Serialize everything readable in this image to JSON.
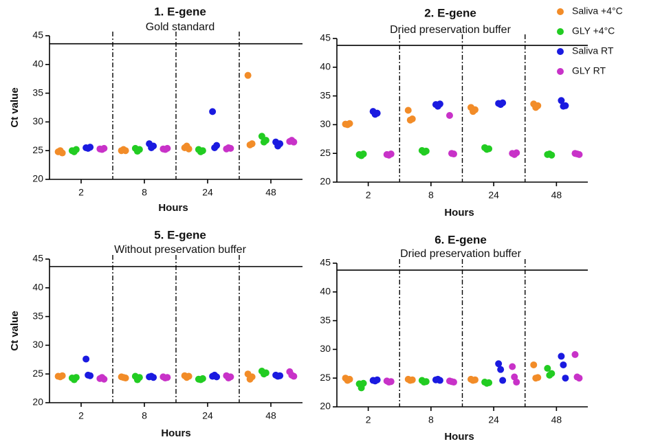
{
  "chart_data": [
    {
      "type": "strip",
      "title": "1. E-gene",
      "subtitle": "Gold standard",
      "x_label": "Hours",
      "y_label": "Ct value",
      "categories": [
        "2",
        "8",
        "24",
        "48"
      ],
      "ylim": [
        20,
        45
      ],
      "yticks": [
        20,
        25,
        30,
        35,
        40,
        45
      ],
      "hline": 43.6,
      "series": [
        {
          "name": "Saliva +4°C",
          "color": "#f28c28",
          "values": [
            [
              24.8,
              25,
              24.6
            ],
            [
              25,
              25.2,
              25
            ],
            [
              25.5,
              25.8,
              25.3
            ],
            [
              38.1,
              26,
              26.2
            ]
          ]
        },
        {
          "name": "GLY +4°C",
          "color": "#22cc22",
          "values": [
            [
              25,
              24.8,
              25.2
            ],
            [
              25.4,
              24.9,
              25.2
            ],
            [
              25.2,
              24.8,
              25
            ],
            [
              27.5,
              26.5,
              26.8
            ]
          ]
        },
        {
          "name": "Saliva RT",
          "color": "#1a1ae0",
          "values": [
            [
              25.5,
              25.4,
              25.6
            ],
            [
              26.2,
              25.5,
              25.8
            ],
            [
              31.8,
              25.5,
              25.9
            ],
            [
              26.5,
              25.8,
              26.2
            ]
          ]
        },
        {
          "name": "GLY RT",
          "color": "#c832c8",
          "values": [
            [
              25.3,
              25.2,
              25.4
            ],
            [
              25.3,
              25.2,
              25.4
            ],
            [
              25.3,
              25.5,
              25.4
            ],
            [
              26.6,
              26.8,
              26.5
            ]
          ]
        }
      ]
    },
    {
      "type": "strip",
      "title": "2. E-gene",
      "subtitle": "Dried preservation buffer",
      "x_label": "Hours",
      "categories": [
        "2",
        "8",
        "24",
        "48"
      ],
      "ylim": [
        20,
        45
      ],
      "yticks": [
        20,
        25,
        30,
        35,
        40,
        45
      ],
      "hline": 43.8,
      "series": [
        {
          "color": "#f28c28",
          "values": [
            [
              30.1,
              30,
              30.2
            ],
            [
              32.5,
              30.8,
              31
            ],
            [
              33,
              32.3,
              32.6
            ],
            [
              33.6,
              33,
              33.3
            ]
          ]
        },
        {
          "color": "#22cc22",
          "values": [
            [
              24.8,
              24.6,
              24.9
            ],
            [
              25.5,
              25.2,
              25.4
            ],
            [
              26,
              25.7,
              25.8
            ],
            [
              24.8,
              24.9,
              24.7
            ]
          ]
        },
        {
          "color": "#1a1ae0",
          "values": [
            [
              32.3,
              31.8,
              32
            ],
            [
              33.5,
              33.2,
              33.6
            ],
            [
              33.7,
              33.5,
              33.8
            ],
            [
              34.2,
              33.2,
              33.3
            ]
          ]
        },
        {
          "color": "#c832c8",
          "values": [
            [
              24.8,
              24.7,
              24.9
            ],
            [
              31.6,
              25,
              24.9
            ],
            [
              25,
              24.8,
              25.1
            ],
            [
              25,
              24.9,
              24.8
            ]
          ]
        }
      ]
    },
    {
      "type": "strip",
      "title": "5. E-gene",
      "subtitle": "Without preservation buffer",
      "x_label": "Hours",
      "y_label": "Ct value",
      "categories": [
        "2",
        "8",
        "24",
        "48"
      ],
      "ylim": [
        20,
        45
      ],
      "yticks": [
        20,
        25,
        30,
        35,
        40,
        45
      ],
      "hline": 43.7,
      "series": [
        {
          "color": "#f28c28",
          "values": [
            [
              24.6,
              24.5,
              24.7
            ],
            [
              24.5,
              24.4,
              24.3
            ],
            [
              24.7,
              24.4,
              24.6
            ],
            [
              25,
              24.1,
              24.5
            ]
          ]
        },
        {
          "color": "#22cc22",
          "values": [
            [
              24.3,
              24,
              24.4
            ],
            [
              24.6,
              24,
              24.4
            ],
            [
              24.1,
              24,
              24.2
            ],
            [
              25.5,
              25,
              25.2
            ]
          ]
        },
        {
          "color": "#1a1ae0",
          "values": [
            [
              27.6,
              24.8,
              24.7
            ],
            [
              24.5,
              24.6,
              24.4
            ],
            [
              24.6,
              24.8,
              24.5
            ],
            [
              24.8,
              24.6,
              24.7
            ]
          ]
        },
        {
          "color": "#c832c8",
          "values": [
            [
              24.2,
              24.4,
              24.1
            ],
            [
              24.5,
              24.3,
              24.4
            ],
            [
              24.7,
              24.3,
              24.5
            ],
            [
              25.4,
              24.8,
              24.6
            ]
          ]
        }
      ]
    },
    {
      "type": "strip",
      "title": "6. E-gene",
      "subtitle": "Dried preservation buffer",
      "x_label": "Hours",
      "categories": [
        "2",
        "8",
        "24",
        "48"
      ],
      "ylim": [
        20,
        45
      ],
      "yticks": [
        20,
        25,
        30,
        35,
        40,
        45
      ],
      "hline": 43.8,
      "series": [
        {
          "color": "#f28c28",
          "values": [
            [
              25,
              24.6,
              24.8
            ],
            [
              24.8,
              24.6,
              24.7
            ],
            [
              24.8,
              24.6,
              24.7
            ],
            [
              27.3,
              25,
              25.1
            ]
          ]
        },
        {
          "color": "#22cc22",
          "values": [
            [
              24,
              23.3,
              24.1
            ],
            [
              24.6,
              24.3,
              24.4
            ],
            [
              24.3,
              24.1,
              24.2
            ],
            [
              26.7,
              25.5,
              25.8
            ]
          ]
        },
        {
          "color": "#1a1ae0",
          "values": [
            [
              24.6,
              24.5,
              24.7
            ],
            [
              24.7,
              24.8,
              24.6
            ],
            [
              27.5,
              26.5,
              24.6
            ],
            [
              28.8,
              27.3,
              25
            ]
          ]
        },
        {
          "color": "#c832c8",
          "values": [
            [
              24.5,
              24.3,
              24.4
            ],
            [
              24.5,
              24.4,
              24.3
            ],
            [
              27,
              25.2,
              24.3
            ],
            [
              29.1,
              25.2,
              25
            ]
          ]
        }
      ]
    }
  ]
}
